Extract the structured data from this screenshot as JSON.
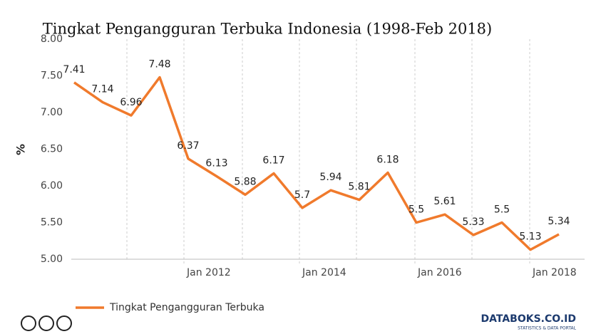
{
  "chart_data": {
    "type": "line",
    "title": "Tingkat Pengangguran Terbuka Indonesia (1998-Feb 2018)",
    "ylabel": "%",
    "x": [
      0,
      1,
      2,
      3,
      4,
      5,
      6,
      7,
      8,
      9,
      10,
      11,
      12,
      13,
      14,
      15,
      16,
      17
    ],
    "xlim": [
      0,
      17
    ],
    "xticks": [
      {
        "value": 3.85,
        "label": "Jan 2012"
      },
      {
        "value": 7.9,
        "label": "Jan 2014"
      },
      {
        "value": 11.95,
        "label": "Jan 2016"
      },
      {
        "value": 15.975,
        "label": "Jan 2018"
      }
    ],
    "minor_xticks": [
      1.85,
      5.9,
      9.9,
      13.95
    ],
    "ylim": [
      5,
      8
    ],
    "yticks": [
      {
        "value": 5,
        "label": "5.00"
      },
      {
        "value": 5.5,
        "label": "5.50"
      },
      {
        "value": 6,
        "label": "6.00"
      },
      {
        "value": 6.5,
        "label": "6.50"
      },
      {
        "value": 7,
        "label": "7.00"
      },
      {
        "value": 7.5,
        "label": "7.50"
      },
      {
        "value": 8,
        "label": "8.00"
      }
    ],
    "series": [
      {
        "name": "Tingkat Pengangguran Terbuka",
        "color": "#f07a2c",
        "values": [
          7.41,
          7.14,
          6.96,
          7.48,
          6.37,
          6.13,
          5.88,
          6.17,
          5.7,
          5.94,
          5.81,
          6.18,
          5.5,
          5.61,
          5.33,
          5.5,
          5.13,
          5.34
        ]
      }
    ],
    "legend": "bottom-left",
    "source": "DATABOKS.CO.ID",
    "source_tagline": "STATISTICS & DATA PORTAL"
  }
}
